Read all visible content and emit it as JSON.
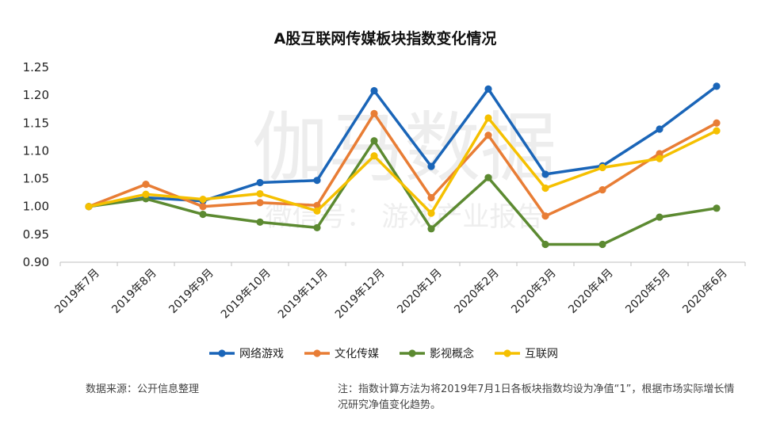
{
  "watermark": {
    "main": "伽马数据",
    "sub": "微信号：  游戏产业报告"
  },
  "source_note": "数据来源：公开信息整理",
  "footnote": "注：指数计算方法为将2019年7月1日各板块指数均设为净值“1”，根据市场实际增长情况研究净值变化趋势。",
  "chart_data": {
    "type": "line",
    "title": "A股互联网传媒板块指数变化情况",
    "xlabel": "",
    "ylabel": "",
    "ylim": [
      0.9,
      1.25
    ],
    "yticks": [
      "0.90",
      "0.95",
      "1.00",
      "1.05",
      "1.10",
      "1.15",
      "1.20",
      "1.25"
    ],
    "grid": false,
    "legend_position": "bottom",
    "categories": [
      "2019年7月",
      "2019年8月",
      "2019年9月",
      "2019年10月",
      "2019年11月",
      "2019年12月",
      "2020年1月",
      "2020年2月",
      "2020年3月",
      "2020年4月",
      "2020年5月",
      "2020年6月"
    ],
    "series": [
      {
        "name": "网络游戏",
        "color": "#1a65b8",
        "values": [
          1.0,
          1.016,
          1.01,
          1.043,
          1.047,
          1.208,
          1.072,
          1.211,
          1.058,
          1.073,
          1.139,
          1.216
        ]
      },
      {
        "name": "文化传媒",
        "color": "#e87d35",
        "values": [
          1.0,
          1.04,
          1.0,
          1.007,
          1.002,
          1.167,
          1.016,
          1.128,
          0.983,
          1.03,
          1.095,
          1.15
        ]
      },
      {
        "name": "影视概念",
        "color": "#5c8a31",
        "values": [
          1.0,
          1.014,
          0.986,
          0.972,
          0.962,
          1.118,
          0.96,
          1.052,
          0.932,
          0.932,
          0.981,
          0.997
        ]
      },
      {
        "name": "互联网",
        "color": "#f5c000",
        "values": [
          1.0,
          1.022,
          1.013,
          1.023,
          0.992,
          1.091,
          0.988,
          1.159,
          1.033,
          1.07,
          1.086,
          1.136
        ]
      }
    ]
  }
}
